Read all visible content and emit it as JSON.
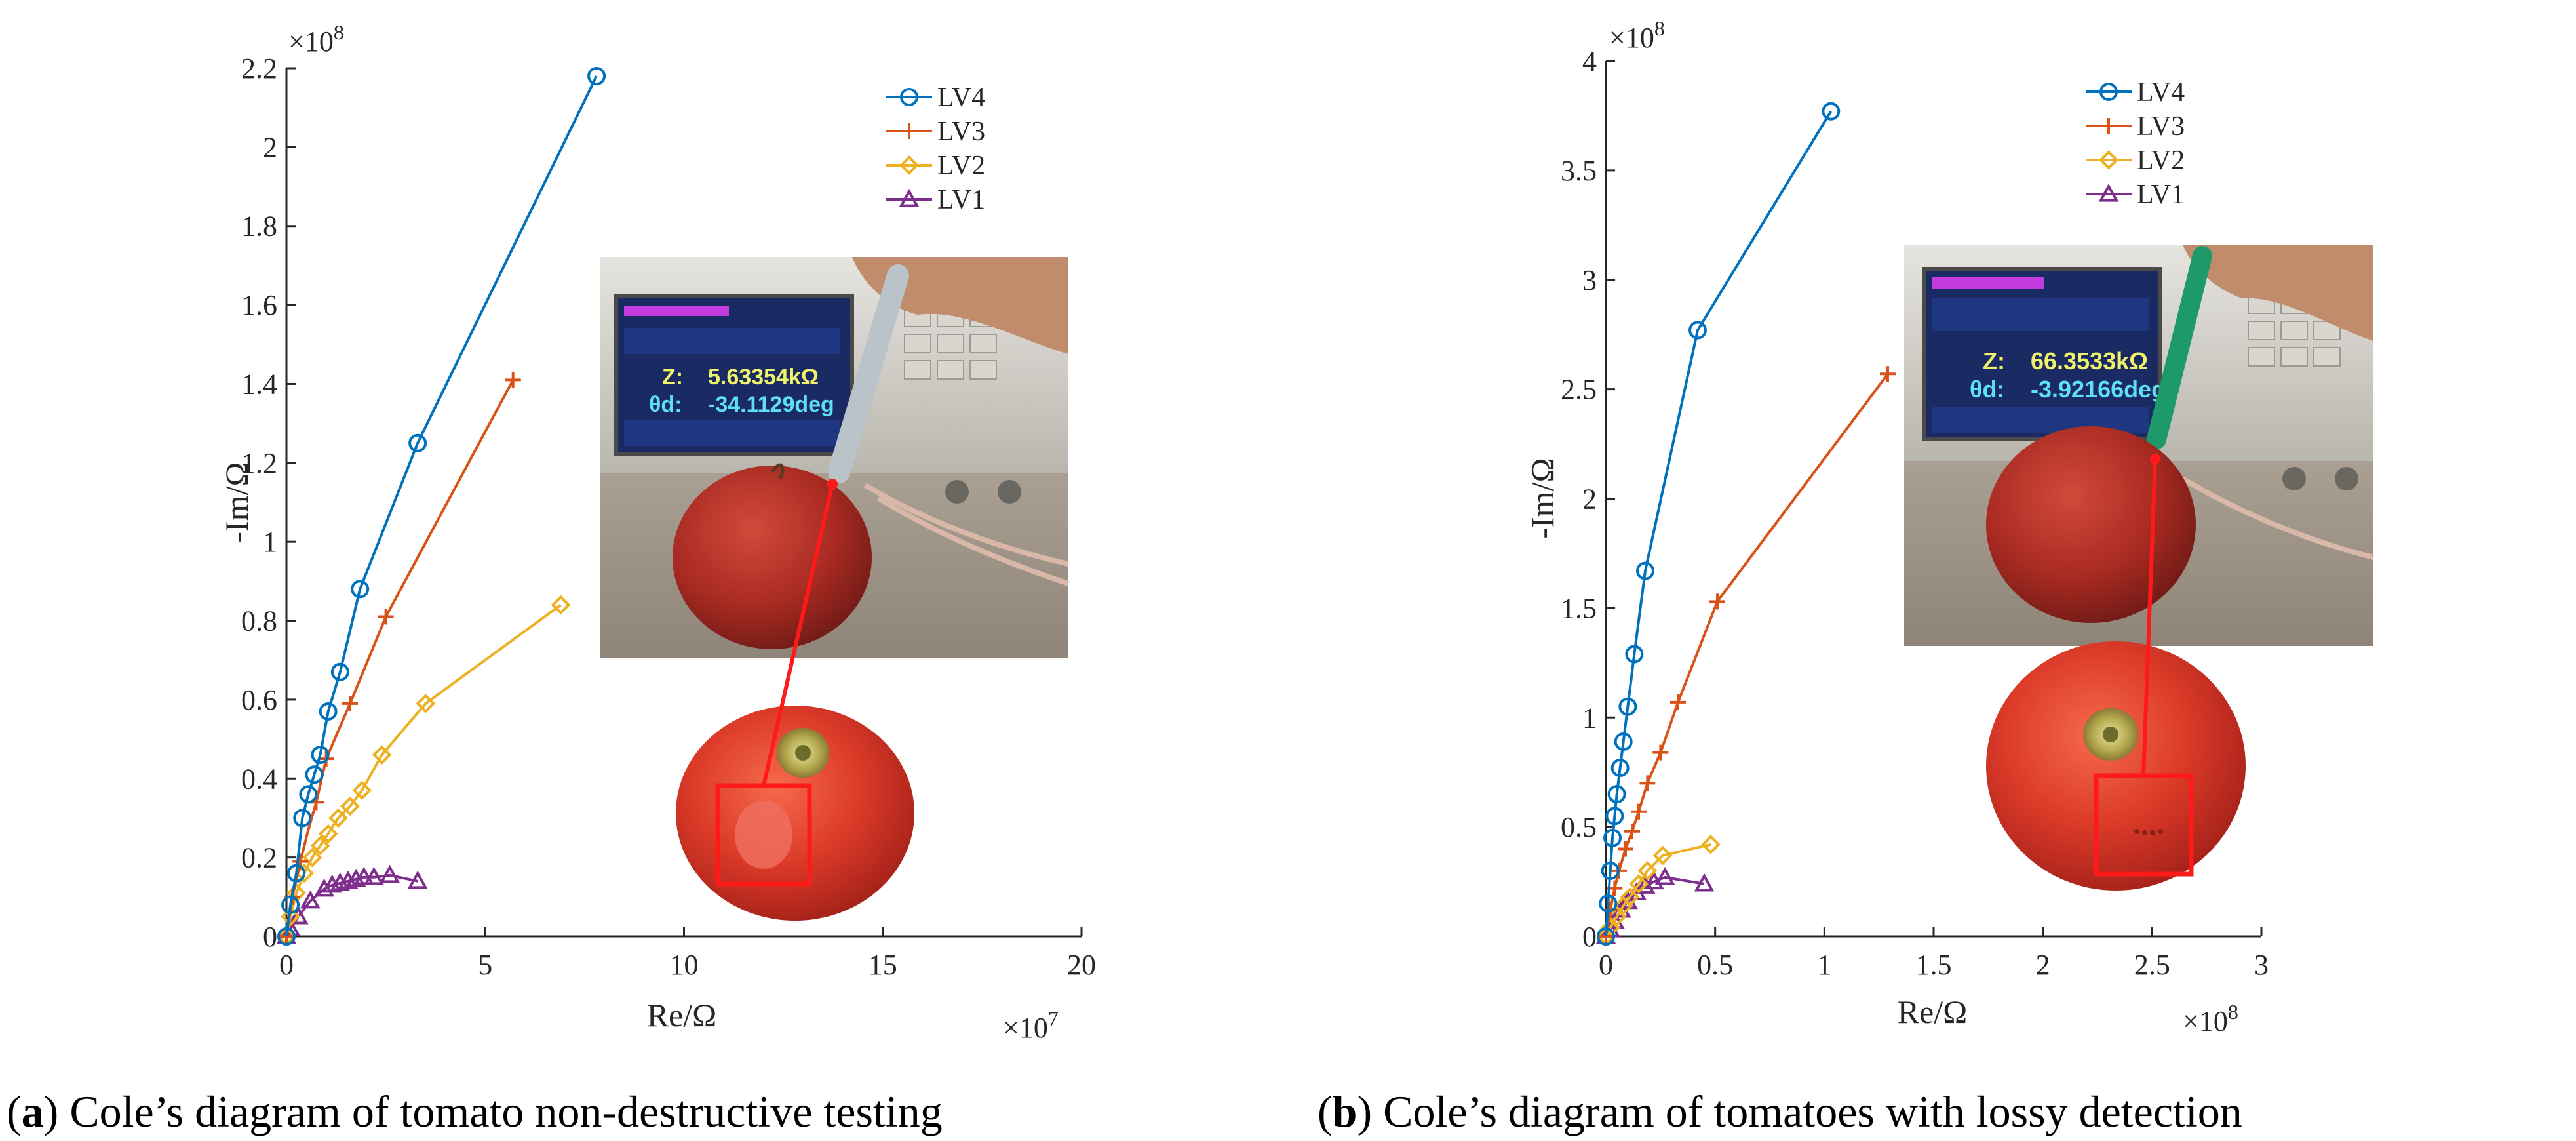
{
  "chart_data": [
    {
      "type": "line",
      "caption_label": "a",
      "caption_text": "Cole’s diagram of tomato non-destructive testing",
      "xlabel": "Re/Ω",
      "ylabel": "-Im/Ω",
      "x_multiplier": "×10^7",
      "y_multiplier": "×10^8",
      "x_multiplier_base": "×10",
      "x_multiplier_exp": "7",
      "y_multiplier_base": "×10",
      "y_multiplier_exp": "8",
      "xlim": [
        0,
        20
      ],
      "ylim": [
        0,
        2.2
      ],
      "xticks": [
        0,
        5,
        10,
        15,
        20
      ],
      "xtick_labels": [
        "0",
        "5",
        "10",
        "15",
        "20"
      ],
      "yticks": [
        0,
        0.2,
        0.4,
        0.6,
        0.8,
        1,
        1.2,
        1.4,
        1.6,
        1.8,
        2,
        2.2
      ],
      "ytick_labels": [
        "0",
        "0.2",
        "0.4",
        "0.6",
        "0.8",
        "1",
        "1.2",
        "1.4",
        "1.6",
        "1.8",
        "2",
        "2.2"
      ],
      "grid": false,
      "legend_position": "top-right",
      "series": [
        {
          "name": "LV4",
          "color": "#0072BD",
          "marker": "circle",
          "x": [
            0,
            0.1,
            0.25,
            0.4,
            0.55,
            0.7,
            0.85,
            1.05,
            1.35,
            1.85,
            3.3,
            7.8
          ],
          "y": [
            0,
            0.08,
            0.16,
            0.3,
            0.36,
            0.41,
            0.46,
            0.57,
            0.67,
            0.88,
            1.25,
            2.18
          ]
        },
        {
          "name": "LV3",
          "color": "#D95319",
          "marker": "plus",
          "x": [
            0,
            0.15,
            0.35,
            0.55,
            0.75,
            1.0,
            1.6,
            2.5,
            5.7
          ],
          "y": [
            0,
            0.1,
            0.19,
            0.27,
            0.34,
            0.45,
            0.59,
            0.81,
            1.41
          ],
          "points_drawn": [
            0,
            1,
            2,
            4,
            5,
            6,
            7,
            8
          ]
        },
        {
          "name": "LV2",
          "color": "#EDB120",
          "marker": "diamond",
          "x": [
            0,
            0.1,
            0.25,
            0.45,
            0.65,
            0.85,
            1.05,
            1.3,
            1.6,
            1.9,
            2.4,
            3.5,
            6.9
          ],
          "y": [
            0,
            0.05,
            0.11,
            0.16,
            0.2,
            0.23,
            0.26,
            0.3,
            0.33,
            0.37,
            0.46,
            0.59,
            0.84
          ]
        },
        {
          "name": "LV1",
          "color": "#7E2F8E",
          "marker": "triangle",
          "x": [
            0,
            0.1,
            0.3,
            0.6,
            0.95,
            1.15,
            1.35,
            1.55,
            1.75,
            1.95,
            2.2,
            2.6,
            3.3
          ],
          "y": [
            0,
            0.02,
            0.05,
            0.09,
            0.12,
            0.13,
            0.135,
            0.14,
            0.145,
            0.15,
            0.15,
            0.155,
            0.14
          ]
        }
      ]
    },
    {
      "type": "line",
      "caption_label": "b",
      "caption_text": "Cole’s diagram of tomatoes with lossy detection",
      "xlabel": "Re/Ω",
      "ylabel": "-Im/Ω",
      "x_multiplier": "×10^8",
      "y_multiplier": "×10^8",
      "x_multiplier_base": "×10",
      "x_multiplier_exp": "8",
      "y_multiplier_base": "×10",
      "y_multiplier_exp": "8",
      "xlim": [
        0,
        3
      ],
      "ylim": [
        0,
        4
      ],
      "xticks": [
        0,
        0.5,
        1,
        1.5,
        2,
        2.5,
        3
      ],
      "xtick_labels": [
        "0",
        "0.5",
        "1",
        "1.5",
        "2",
        "2.5",
        "3"
      ],
      "yticks": [
        0,
        0.5,
        1,
        1.5,
        2,
        2.5,
        3,
        3.5,
        4
      ],
      "ytick_labels": [
        "0",
        "0.5",
        "1",
        "1.5",
        "2",
        "2.5",
        "3",
        "3.5",
        "4"
      ],
      "grid": false,
      "legend_position": "top-right",
      "series": [
        {
          "name": "LV4",
          "color": "#0072BD",
          "marker": "circle",
          "x": [
            0,
            0.01,
            0.02,
            0.03,
            0.04,
            0.05,
            0.065,
            0.08,
            0.1,
            0.13,
            0.18,
            0.42,
            1.03
          ],
          "y": [
            0,
            0.15,
            0.3,
            0.45,
            0.55,
            0.65,
            0.77,
            0.89,
            1.05,
            1.29,
            1.67,
            2.77,
            3.77
          ]
        },
        {
          "name": "LV3",
          "color": "#D95319",
          "marker": "plus",
          "x": [
            0,
            0.02,
            0.04,
            0.06,
            0.09,
            0.12,
            0.15,
            0.19,
            0.25,
            0.33,
            0.51,
            1.29
          ],
          "y": [
            0,
            0.12,
            0.22,
            0.3,
            0.4,
            0.48,
            0.57,
            0.7,
            0.84,
            1.07,
            1.53,
            2.57
          ]
        },
        {
          "name": "LV2",
          "color": "#EDB120",
          "marker": "diamond",
          "x": [
            0,
            0.02,
            0.05,
            0.08,
            0.11,
            0.15,
            0.19,
            0.26,
            0.48
          ],
          "y": [
            0,
            0.04,
            0.09,
            0.14,
            0.18,
            0.24,
            0.3,
            0.37,
            0.42
          ]
        },
        {
          "name": "LV1",
          "color": "#7E2F8E",
          "marker": "triangle",
          "x": [
            0,
            0.02,
            0.04,
            0.07,
            0.1,
            0.14,
            0.18,
            0.22,
            0.27,
            0.45
          ],
          "y": [
            0,
            0.03,
            0.07,
            0.12,
            0.16,
            0.2,
            0.23,
            0.25,
            0.27,
            0.24
          ]
        }
      ]
    }
  ],
  "insets": [
    {
      "z_label": "Z:",
      "z_value": "5.63354kΩ",
      "theta_label": "θd:",
      "theta_value": "-34.1129deg"
    },
    {
      "z_label": "Z:",
      "z_value": "66.3533kΩ",
      "theta_label": "θd:",
      "theta_value": "-3.92166deg"
    }
  ],
  "colors": {
    "LV4": "#0072BD",
    "LV3": "#D95319",
    "LV2": "#EDB120",
    "LV1": "#7E2F8E",
    "pointer": "#FF1A1A",
    "tomato": "#D8382A"
  }
}
